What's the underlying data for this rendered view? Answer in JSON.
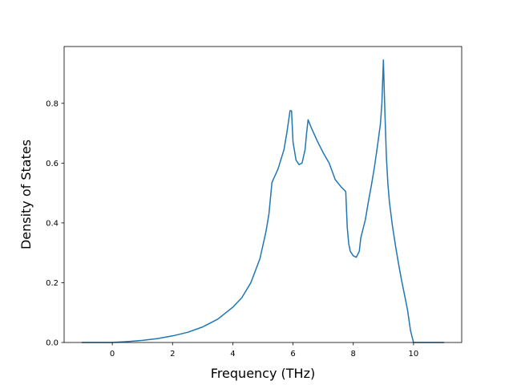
{
  "chart_data": {
    "type": "line",
    "title": "",
    "xlabel": "Frequency (THz)",
    "ylabel": "Density of States",
    "xlim": [
      -1.6,
      11.6
    ],
    "ylim": [
      0.0,
      0.99
    ],
    "xticks": [
      0,
      2,
      4,
      6,
      8,
      10
    ],
    "xtick_labels": [
      "0",
      "2",
      "4",
      "6",
      "8",
      "10"
    ],
    "yticks": [
      0.0,
      0.2,
      0.4,
      0.6,
      0.8
    ],
    "ytick_labels": [
      "0.0",
      "0.2",
      "0.4",
      "0.6",
      "0.8"
    ],
    "grid": false,
    "legend": false,
    "line_color": "#1f77b4",
    "series": [
      {
        "x": [
          -1.0,
          0.0,
          0.5,
          1.0,
          1.5,
          2.0,
          2.5,
          3.0,
          3.5,
          4.0,
          4.3,
          4.6,
          4.9,
          5.1,
          5.2,
          5.3,
          5.5,
          5.7,
          5.8,
          5.9,
          5.95,
          6.0,
          6.1,
          6.2,
          6.3,
          6.4,
          6.45,
          6.5,
          6.6,
          6.8,
          7.0,
          7.2,
          7.4,
          7.6,
          7.75,
          7.8,
          7.85,
          7.9,
          8.0,
          8.1,
          8.2,
          8.25,
          8.3,
          8.4,
          8.5,
          8.6,
          8.7,
          8.8,
          8.9,
          8.95,
          9.0,
          9.05,
          9.1,
          9.15,
          9.2,
          9.3,
          9.4,
          9.5,
          9.6,
          9.7,
          9.8,
          9.9,
          10.0,
          11.0
        ],
        "y": [
          0.0,
          0.0,
          0.003,
          0.007,
          0.013,
          0.022,
          0.034,
          0.052,
          0.078,
          0.118,
          0.15,
          0.2,
          0.28,
          0.37,
          0.43,
          0.535,
          0.58,
          0.645,
          0.705,
          0.775,
          0.775,
          0.67,
          0.61,
          0.595,
          0.6,
          0.645,
          0.7,
          0.745,
          0.72,
          0.675,
          0.635,
          0.6,
          0.545,
          0.52,
          0.505,
          0.385,
          0.33,
          0.305,
          0.29,
          0.285,
          0.305,
          0.35,
          0.37,
          0.41,
          0.47,
          0.525,
          0.585,
          0.655,
          0.73,
          0.8,
          0.945,
          0.77,
          0.62,
          0.53,
          0.47,
          0.39,
          0.325,
          0.265,
          0.21,
          0.16,
          0.11,
          0.04,
          0.0,
          0.0
        ]
      }
    ]
  }
}
